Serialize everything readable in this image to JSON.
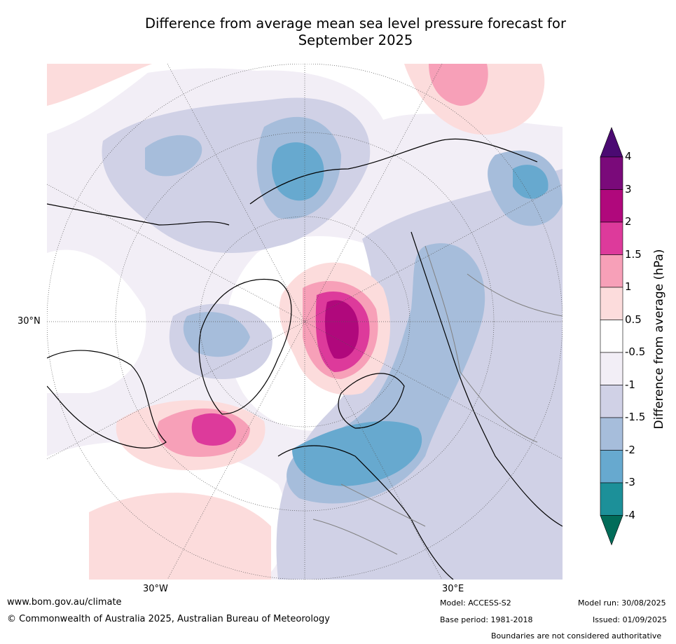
{
  "title": {
    "line1": "Difference from average mean sea level pressure forecast for",
    "line2": "September 2025"
  },
  "map": {
    "lat_labels": [
      "30°N",
      "30°W",
      "30°E"
    ],
    "colors": {
      "land_outline": "#000000",
      "borders": "#808080",
      "graticule": "#555555"
    }
  },
  "colorbar": {
    "title": "Difference from average (hPa)",
    "levels": [
      "4",
      "3",
      "2",
      "1.5",
      "1",
      "0.5",
      "-0.5",
      "-1",
      "-1.5",
      "-2",
      "-3",
      "-4"
    ],
    "colors": [
      "#4b0a72",
      "#7a0a7a",
      "#b0087c",
      "#dd3a9b",
      "#f7a0b8",
      "#fcdcdc",
      "#ffffff",
      "#f2eef6",
      "#d0d1e6",
      "#a6bddb",
      "#67a9cf",
      "#1c9099",
      "#016c59"
    ]
  },
  "footer": {
    "url": "www.bom.gov.au/climate",
    "copyright": "© Commonwealth of Australia 2025, Australian Bureau of Meteorology",
    "model": "Model: ACCESS-S2",
    "model_run": "Model run: 30/08/2025",
    "base_period": "Base period: 1981-2018",
    "issued": "Issued: 01/09/2025",
    "disclaimer": "Boundaries are not considered authoritative"
  }
}
